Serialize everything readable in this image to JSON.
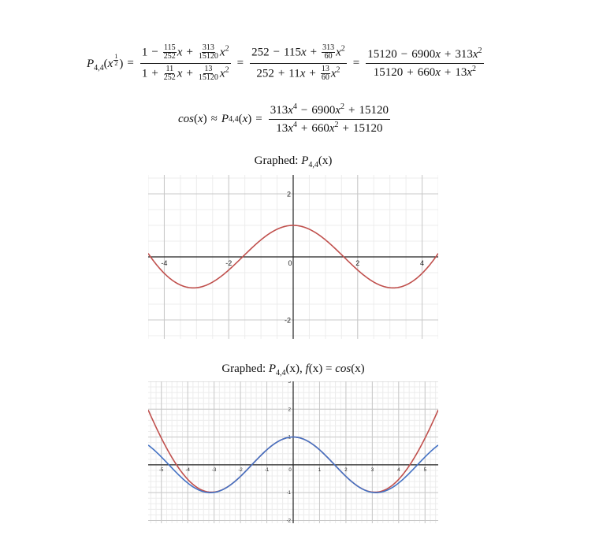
{
  "equations": {
    "eq1": {
      "lhs_P": "P",
      "lhs_sub": "4,4",
      "lhs_arg_open": "(",
      "lhs_arg_var": "x",
      "lhs_exp_num": "1",
      "lhs_exp_den": "2",
      "lhs_arg_close": ")",
      "frac1_num": {
        "one": "1",
        "minus": "−",
        "c1n": "115",
        "c1d": "252",
        "x": "x",
        "plus": "+",
        "c2n": "313",
        "c2d": "15120",
        "x2": "x",
        "sq": "2"
      },
      "frac1_den": {
        "one": "1",
        "plus1": "+",
        "c1n": "11",
        "c1d": "252",
        "x": "x",
        "plus2": "+",
        "c2n": "13",
        "c2d": "15120",
        "x2": "x",
        "sq": "2"
      },
      "frac2_num": {
        "a": "252",
        "minus": "−",
        "b": "115",
        "x": "x",
        "plus": "+",
        "cn": "313",
        "cd": "60",
        "x2": "x",
        "sq": "2"
      },
      "frac2_den": {
        "a": "252",
        "plus1": "+",
        "b": "11",
        "x": "x",
        "plus2": "+",
        "cn": "13",
        "cd": "60",
        "x2": "x",
        "sq": "2"
      },
      "frac3_num": {
        "a": "15120",
        "minus": "−",
        "b": "6900",
        "x": "x",
        "plus": "+",
        "c": "313",
        "x2": "x",
        "sq": "2"
      },
      "frac3_den": {
        "a": "15120",
        "plus1": "+",
        "b": "660",
        "x": "x",
        "plus2": "+",
        "c": "13",
        "x2": "x",
        "sq": "2"
      },
      "eq_sign": "="
    },
    "eq2": {
      "cos": "cos",
      "open": "(",
      "x": "x",
      "close": ")",
      "approx": "≈",
      "P": "P",
      "sub": "4,4",
      "eq_sign": "=",
      "num": {
        "a": "313",
        "x": "x",
        "p4": "4",
        "minus": "−",
        "b": "6900",
        "x2": "x",
        "p2": "2",
        "plus": "+",
        "c": "15120"
      },
      "den": {
        "a": "13",
        "x": "x",
        "p4": "4",
        "plus1": "+",
        "b": "660",
        "x2": "x",
        "p2": "2",
        "plus2": "+",
        "c": "15120"
      }
    }
  },
  "graph1": {
    "title_prefix": "Graphed:",
    "title_P": "P",
    "title_sub": "4,4",
    "title_arg": "(x)"
  },
  "graph2": {
    "title_prefix": "Graphed:",
    "title_P": "P",
    "title_sub": "4,4",
    "title_arg": "(x),",
    "title_f": "f",
    "title_f_arg": "(x)",
    "title_eq": "=",
    "title_cos": "cos",
    "title_cos_arg": "(x)"
  },
  "chart_data": [
    {
      "type": "line",
      "title": "Graphed: P4,4(x)",
      "xlim": [
        -4.5,
        4.5
      ],
      "ylim": [
        -2.6,
        2.6
      ],
      "x_ticks": [
        -4,
        -2,
        0,
        2,
        4
      ],
      "y_ticks": [
        2,
        -2
      ],
      "x_tick_labels": [
        "-4",
        "-2",
        "0",
        "2",
        "4"
      ],
      "y_tick_labels": [
        "2",
        "-2"
      ],
      "grid": true,
      "series": [
        {
          "name": "P4,4(x)",
          "expression": "(313x^4 - 6900x^2 + 15120)/(13x^4 + 660x^2 + 15120)",
          "color": "#c0504d"
        }
      ]
    },
    {
      "type": "line",
      "title": "Graphed: P4,4(x), f(x) = cos(x)",
      "xlim": [
        -5.5,
        5.5
      ],
      "ylim": [
        -2.1,
        3.0
      ],
      "x_ticks": [
        -5,
        -4,
        -3,
        -2,
        -1,
        0,
        1,
        2,
        3,
        4,
        5
      ],
      "y_ticks": [
        3,
        2,
        1,
        -1,
        -2
      ],
      "x_tick_labels": [
        "-5",
        "-4",
        "-3",
        "-2",
        "-1",
        "0",
        "1",
        "2",
        "3",
        "4",
        "5"
      ],
      "y_tick_labels": [
        "3",
        "2",
        "1",
        "-1",
        "-2"
      ],
      "grid": true,
      "series": [
        {
          "name": "P4,4(x)",
          "expression": "(313x^4 - 6900x^2 + 15120)/(13x^4 + 660x^2 + 15120)",
          "color": "#c0504d"
        },
        {
          "name": "f(x) = cos(x)",
          "expression": "cos(x)",
          "color": "#4472c4"
        }
      ]
    }
  ],
  "colors": {
    "curve_red": "#c0504d",
    "curve_blue": "#4472c4",
    "grid_major": "#c8c8c8",
    "grid_minor": "#ececec",
    "axis": "#222222"
  }
}
